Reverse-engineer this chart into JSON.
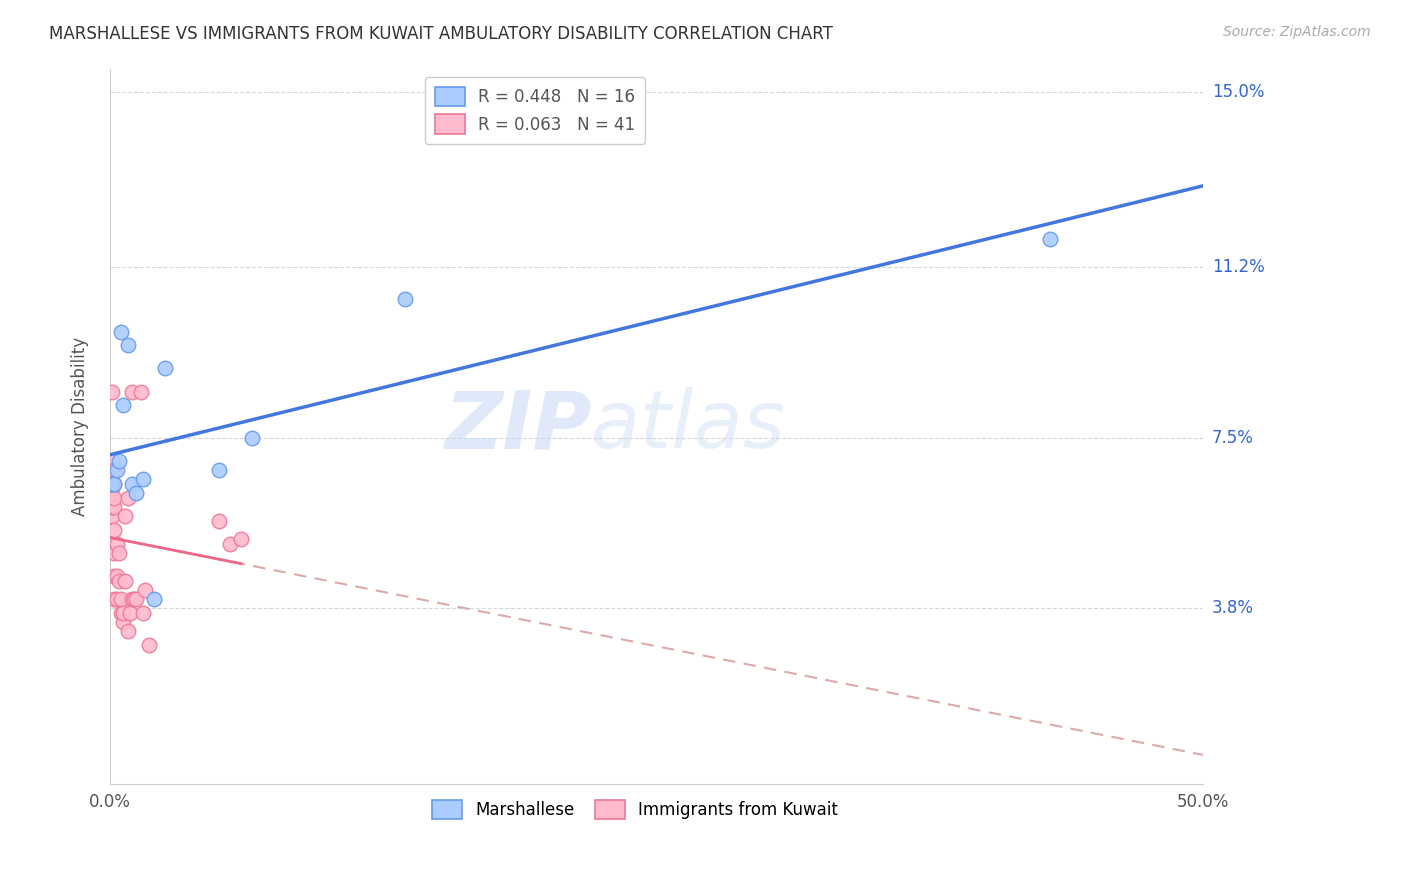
{
  "title": "MARSHALLESE VS IMMIGRANTS FROM KUWAIT AMBULATORY DISABILITY CORRELATION CHART",
  "source": "Source: ZipAtlas.com",
  "ylabel": "Ambulatory Disability",
  "xlim": [
    0.0,
    0.5
  ],
  "ylim": [
    0.0,
    0.155
  ],
  "ytick_labels_right": [
    "15.0%",
    "11.2%",
    "7.5%",
    "3.8%"
  ],
  "ytick_values_right": [
    0.15,
    0.112,
    0.075,
    0.038
  ],
  "grid_color": "#d8d8d8",
  "marshallese_face_color": "#aaccff",
  "kuwait_face_color": "#ffbbcc",
  "marshallese_edge_color": "#6699ee",
  "kuwait_edge_color": "#ee7799",
  "marshallese_line_color": "#4477dd",
  "kuwait_solid_color": "#ee6688",
  "kuwait_dashed_color": "#ddaaaa",
  "marshallese_R": 0.448,
  "marshallese_N": 16,
  "kuwait_R": 0.063,
  "kuwait_N": 41,
  "legend_label1": "Marshallese",
  "legend_label2": "Immigrants from Kuwait",
  "watermark_zip": "ZIP",
  "watermark_atlas": "atlas",
  "marshallese_x": [
    0.001,
    0.002,
    0.003,
    0.004,
    0.005,
    0.006,
    0.008,
    0.01,
    0.012,
    0.015,
    0.02,
    0.025,
    0.05,
    0.065,
    0.135,
    0.43
  ],
  "marshallese_y": [
    0.065,
    0.065,
    0.068,
    0.07,
    0.098,
    0.082,
    0.095,
    0.065,
    0.063,
    0.066,
    0.04,
    0.09,
    0.068,
    0.075,
    0.105,
    0.118
  ],
  "kuwait_x": [
    0.001,
    0.001,
    0.001,
    0.001,
    0.001,
    0.001,
    0.001,
    0.001,
    0.002,
    0.002,
    0.002,
    0.002,
    0.002,
    0.002,
    0.002,
    0.002,
    0.003,
    0.003,
    0.003,
    0.004,
    0.004,
    0.005,
    0.005,
    0.006,
    0.006,
    0.007,
    0.007,
    0.008,
    0.008,
    0.009,
    0.01,
    0.01,
    0.011,
    0.012,
    0.014,
    0.015,
    0.016,
    0.018,
    0.05,
    0.055,
    0.06
  ],
  "kuwait_y": [
    0.058,
    0.06,
    0.062,
    0.064,
    0.065,
    0.068,
    0.07,
    0.085,
    0.04,
    0.045,
    0.05,
    0.055,
    0.06,
    0.062,
    0.065,
    0.068,
    0.04,
    0.045,
    0.052,
    0.044,
    0.05,
    0.037,
    0.04,
    0.035,
    0.037,
    0.044,
    0.058,
    0.062,
    0.033,
    0.037,
    0.04,
    0.085,
    0.04,
    0.04,
    0.085,
    0.037,
    0.042,
    0.03,
    0.057,
    0.052,
    0.053
  ]
}
